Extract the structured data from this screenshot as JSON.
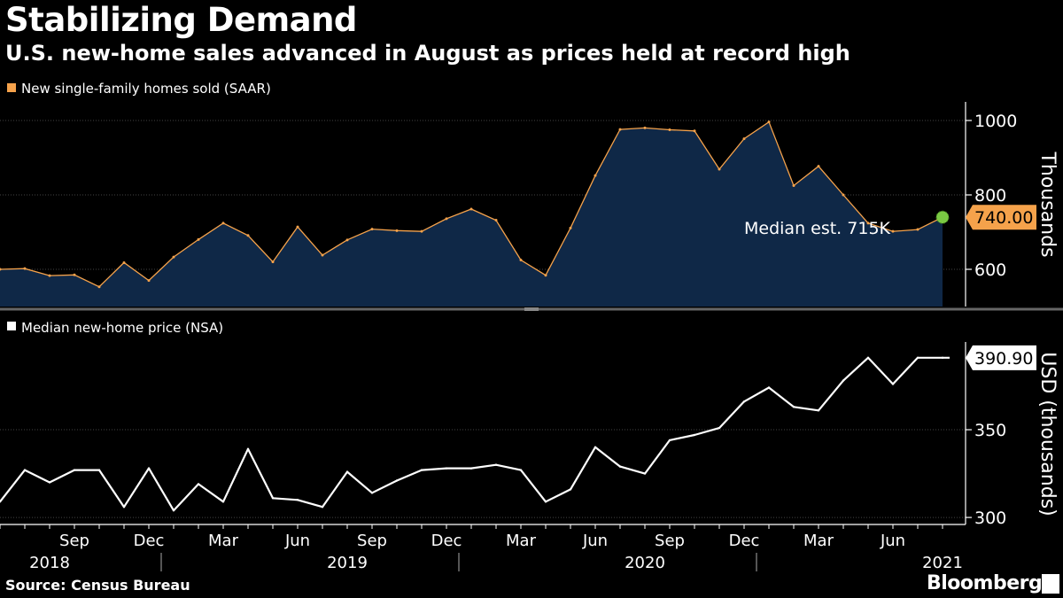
{
  "header": {
    "title": "Stabilizing Demand",
    "subtitle": "U.S. new-home sales advanced in August as prices held at record high"
  },
  "footer": {
    "source": "Source: Census Bureau",
    "brand": "Bloomberg"
  },
  "colors": {
    "background": "#000000",
    "sales_line": "#f5a24b",
    "sales_fill": "#0f2847",
    "price_line": "#ffffff",
    "grid": "#555555",
    "marker": "#7ac943"
  },
  "chart_data": [
    {
      "type": "area",
      "series": [
        {
          "name": "New single-family homes sold (SAAR)",
          "x": [
            "2018-06",
            "2018-07",
            "2018-08",
            "2018-09",
            "2018-10",
            "2018-11",
            "2018-12",
            "2019-01",
            "2019-02",
            "2019-03",
            "2019-04",
            "2019-05",
            "2019-06",
            "2019-07",
            "2019-08",
            "2019-09",
            "2019-10",
            "2019-11",
            "2019-12",
            "2020-01",
            "2020-02",
            "2020-03",
            "2020-04",
            "2020-05",
            "2020-06",
            "2020-07",
            "2020-08",
            "2020-09",
            "2020-10",
            "2020-11",
            "2020-12",
            "2021-01",
            "2021-02",
            "2021-03",
            "2021-04",
            "2021-05",
            "2021-06",
            "2021-07",
            "2021-08"
          ],
          "values": [
            600,
            602,
            583,
            585,
            553,
            618,
            570,
            633,
            680,
            724,
            691,
            620,
            714,
            638,
            679,
            708,
            704,
            702,
            736,
            762,
            732,
            625,
            584,
            711,
            852,
            976,
            980,
            975,
            972,
            869,
            951,
            996,
            825,
            877,
            800,
            724,
            702,
            707,
            740
          ]
        }
      ],
      "ylabel": "Thousands",
      "yticks": [
        600,
        800,
        1000
      ],
      "ylim": [
        500,
        1050
      ],
      "last_value_label": "740.00",
      "annotation": "Median est. 715K",
      "grid": true
    },
    {
      "type": "line",
      "series": [
        {
          "name": "Median new-home price (NSA)",
          "x": [
            "2018-06",
            "2018-07",
            "2018-08",
            "2018-09",
            "2018-10",
            "2018-11",
            "2018-12",
            "2019-01",
            "2019-02",
            "2019-03",
            "2019-04",
            "2019-05",
            "2019-06",
            "2019-07",
            "2019-08",
            "2019-09",
            "2019-10",
            "2019-11",
            "2019-12",
            "2020-01",
            "2020-02",
            "2020-03",
            "2020-04",
            "2020-05",
            "2020-06",
            "2020-07",
            "2020-08",
            "2020-09",
            "2020-10",
            "2020-11",
            "2020-12",
            "2021-01",
            "2021-02",
            "2021-03",
            "2021-04",
            "2021-05",
            "2021-06",
            "2021-07",
            "2021-08"
          ],
          "values": [
            309,
            327,
            320,
            327,
            327,
            306,
            328,
            304,
            319,
            309,
            339,
            311,
            310,
            306,
            326,
            314,
            321,
            327,
            328,
            328,
            330,
            327,
            309,
            316,
            340,
            329,
            325,
            344,
            347,
            351,
            366,
            374,
            363,
            361,
            378,
            391,
            376,
            391,
            391
          ]
        }
      ],
      "ylabel": "USD (thousands)",
      "yticks": [
        300,
        350
      ],
      "ylim": [
        296,
        400
      ],
      "last_value_label": "390.90",
      "grid": true
    }
  ],
  "x_axis": {
    "tick_labels": [
      "Sep",
      "Dec",
      "Mar",
      "Jun",
      "Sep",
      "Dec",
      "Mar",
      "Jun",
      "Sep",
      "Dec",
      "Mar",
      "Jun"
    ],
    "tick_dates": [
      "2018-09",
      "2018-12",
      "2019-03",
      "2019-06",
      "2019-09",
      "2019-12",
      "2020-03",
      "2020-06",
      "2020-09",
      "2020-12",
      "2021-03",
      "2021-06"
    ],
    "year_labels": [
      "2018",
      "2019",
      "2020",
      "2021"
    ],
    "year_label_dates": [
      "2018-08",
      "2019-08",
      "2020-08",
      "2021-08"
    ],
    "year_divider_dates": [
      "2019-01",
      "2020-01",
      "2021-01"
    ]
  }
}
